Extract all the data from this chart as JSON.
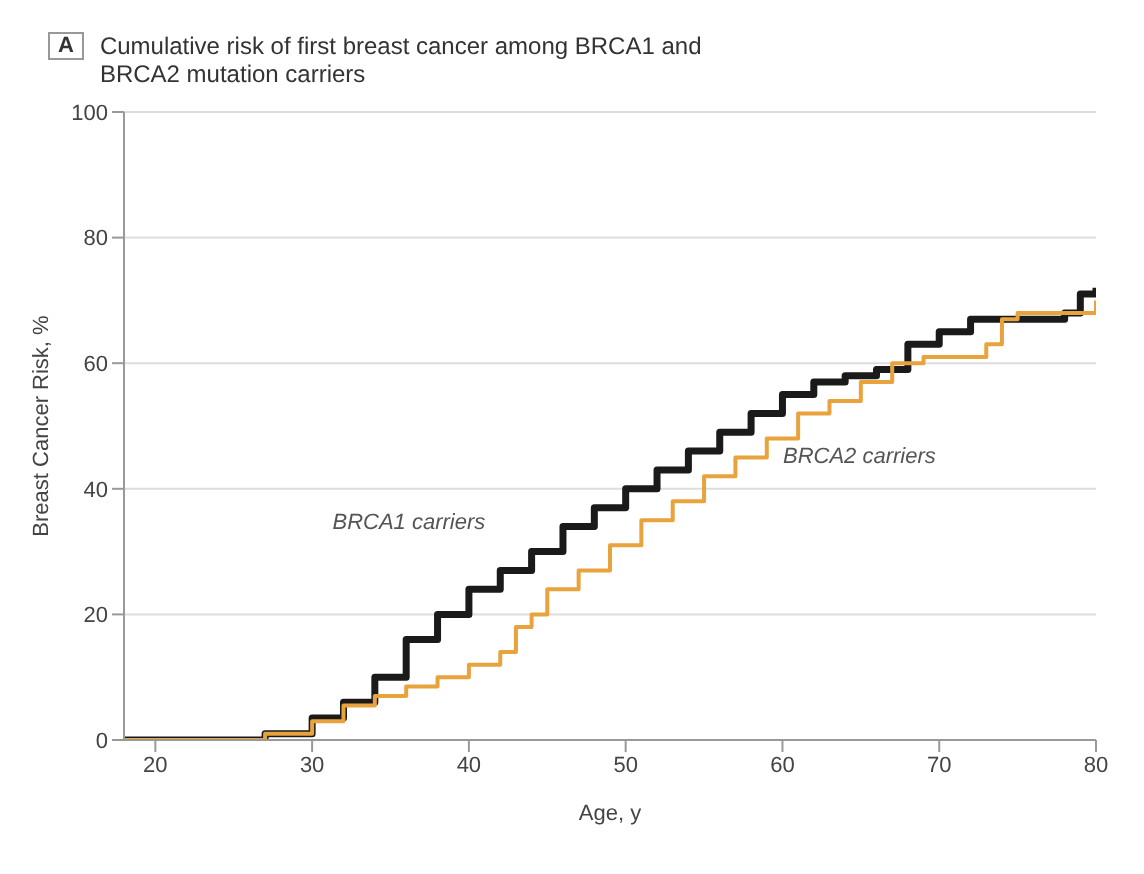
{
  "chart_data": {
    "type": "step",
    "title": "Cumulative risk of first breast cancer among BRCA1 and BRCA2 mutation carriers",
    "annotations": [
      "A"
    ],
    "xlabel": "Age, y",
    "ylabel": "Breast Cancer Risk, %",
    "xlim": [
      18,
      80
    ],
    "xticks": [
      20,
      30,
      40,
      50,
      60,
      70,
      80
    ],
    "ylim": [
      0,
      100
    ],
    "yticks": [
      0,
      20,
      40,
      60,
      80,
      100
    ],
    "grid": "y",
    "series": [
      {
        "name": "BRCA1 carriers",
        "color": "#1a1a1a",
        "x": [
          18,
          25,
          27,
          30,
          32,
          34,
          36,
          38,
          40,
          42,
          44,
          46,
          48,
          50,
          52,
          54,
          56,
          58,
          60,
          62,
          64,
          66,
          68,
          70,
          72,
          75,
          78,
          79,
          80
        ],
        "values": [
          0,
          0,
          1,
          3.5,
          6,
          10,
          16,
          20,
          24,
          27,
          30,
          34,
          37,
          40,
          43,
          46,
          49,
          52,
          55,
          57,
          58,
          59,
          63,
          65,
          67,
          67,
          68,
          71,
          72
        ]
      },
      {
        "name": "BRCA2 carriers",
        "color": "#e8a33c",
        "x": [
          18,
          26,
          27,
          30,
          32,
          34,
          36,
          38,
          40,
          42,
          43,
          44,
          45,
          47,
          49,
          51,
          53,
          55,
          57,
          59,
          61,
          63,
          65,
          67,
          69,
          72,
          73,
          74,
          75,
          78,
          80
        ],
        "values": [
          0,
          0,
          1,
          3,
          5.5,
          7,
          8.5,
          10,
          12,
          14,
          18,
          20,
          24,
          27,
          31,
          35,
          38,
          42,
          45,
          48,
          52,
          54,
          57,
          60,
          61,
          61,
          63,
          67,
          68,
          68,
          70
        ]
      }
    ]
  }
}
